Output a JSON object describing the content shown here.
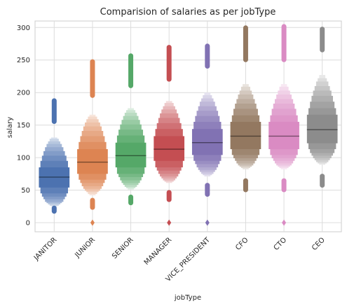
{
  "chart_data": {
    "type": "boxen",
    "title": "Comparision of salaries as per jobType",
    "xlabel": "jobType",
    "ylabel": "salary",
    "ylim": [
      -14,
      310
    ],
    "yticks": [
      0,
      50,
      100,
      150,
      200,
      250,
      300
    ],
    "grid": true,
    "categories": [
      "JANITOR",
      "JUNIOR",
      "SENIOR",
      "MANAGER",
      "VICE_PRESIDENT",
      "CFO",
      "CTO",
      "CEO"
    ],
    "colors": [
      "#4c72b0",
      "#dd8452",
      "#55a868",
      "#c44e52",
      "#8172b3",
      "#937860",
      "#da8bc3",
      "#8c8c8c"
    ],
    "series": [
      {
        "name": "JANITOR",
        "median": 70,
        "levels": [
          [
            54,
            85
          ],
          [
            45,
            95
          ],
          [
            40,
            103
          ],
          [
            36,
            110
          ],
          [
            32,
            116
          ],
          [
            30,
            121
          ],
          [
            28,
            125
          ],
          [
            26,
            129
          ],
          [
            25,
            131
          ]
        ],
        "outliers": [
          [
            17,
            23
          ],
          [
            155,
            188
          ]
        ]
      },
      {
        "name": "JUNIOR",
        "median": 93,
        "levels": [
          [
            75,
            113
          ],
          [
            66,
            124
          ],
          [
            61,
            133
          ],
          [
            56,
            141
          ],
          [
            52,
            148
          ],
          [
            49,
            154
          ],
          [
            47,
            159
          ],
          [
            44,
            163
          ],
          [
            42,
            166
          ]
        ],
        "outliers": [
          [
            23,
            35
          ],
          [
            0,
            0
          ],
          [
            195,
            248
          ]
        ]
      },
      {
        "name": "SENIOR",
        "median": 103,
        "levels": [
          [
            85,
            123
          ],
          [
            75,
            134
          ],
          [
            70,
            143
          ],
          [
            65,
            151
          ],
          [
            61,
            158
          ],
          [
            58,
            164
          ],
          [
            55,
            169
          ],
          [
            53,
            173
          ],
          [
            51,
            176
          ]
        ],
        "outliers": [
          [
            30,
            40
          ],
          [
            210,
            257
          ]
        ]
      },
      {
        "name": "MANAGER",
        "median": 113,
        "levels": [
          [
            95,
            133
          ],
          [
            85,
            144
          ],
          [
            80,
            153
          ],
          [
            75,
            161
          ],
          [
            71,
            168
          ],
          [
            68,
            174
          ],
          [
            65,
            179
          ],
          [
            63,
            184
          ],
          [
            61,
            187
          ]
        ],
        "outliers": [
          [
            35,
            47
          ],
          [
            0,
            0
          ],
          [
            220,
            270
          ]
        ]
      },
      {
        "name": "VICE_PRESIDENT",
        "median": 123,
        "levels": [
          [
            104,
            144
          ],
          [
            95,
            155
          ],
          [
            90,
            164
          ],
          [
            85,
            172
          ],
          [
            81,
            179
          ],
          [
            78,
            186
          ],
          [
            75,
            191
          ],
          [
            73,
            196
          ],
          [
            71,
            200
          ]
        ],
        "outliers": [
          [
            43,
            58
          ],
          [
            0,
            0
          ],
          [
            240,
            272
          ]
        ]
      },
      {
        "name": "CFO",
        "median": 133,
        "levels": [
          [
            113,
            155
          ],
          [
            104,
            165
          ],
          [
            99,
            175
          ],
          [
            95,
            183
          ],
          [
            91,
            190
          ],
          [
            88,
            197
          ],
          [
            86,
            203
          ],
          [
            84,
            209
          ],
          [
            82,
            213
          ]
        ],
        "outliers": [
          [
            50,
            65
          ],
          [
            250,
            300
          ]
        ]
      },
      {
        "name": "CTO",
        "median": 133,
        "levels": [
          [
            113,
            155
          ],
          [
            104,
            165
          ],
          [
            99,
            175
          ],
          [
            95,
            183
          ],
          [
            91,
            190
          ],
          [
            88,
            197
          ],
          [
            86,
            203
          ],
          [
            84,
            209
          ],
          [
            82,
            213
          ]
        ],
        "outliers": [
          [
            50,
            65
          ],
          [
            0,
            0
          ],
          [
            250,
            302
          ]
        ]
      },
      {
        "name": "CEO",
        "median": 143,
        "levels": [
          [
            122,
            166
          ],
          [
            113,
            176
          ],
          [
            107,
            186
          ],
          [
            103,
            195
          ],
          [
            99,
            203
          ],
          [
            96,
            210
          ],
          [
            93,
            217
          ],
          [
            91,
            222
          ],
          [
            89,
            227
          ]
        ],
        "outliers": [
          [
            57,
            72
          ],
          [
            265,
            298
          ]
        ]
      }
    ]
  }
}
